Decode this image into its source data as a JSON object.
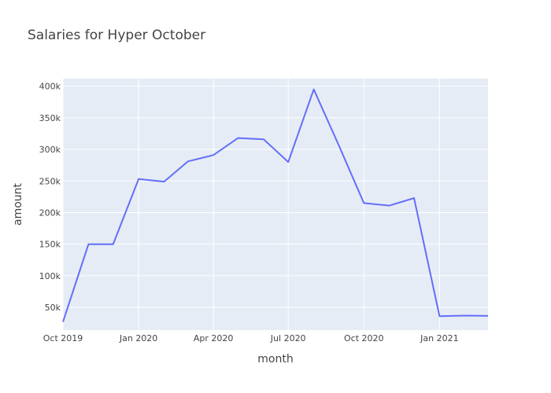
{
  "chart_data": {
    "type": "line",
    "title": "Salaries for Hyper October",
    "xlabel": "month",
    "ylabel": "amount",
    "x": [
      "2019-10-01",
      "2019-11-01",
      "2019-12-01",
      "2020-01-01",
      "2020-02-01",
      "2020-03-01",
      "2020-04-01",
      "2020-05-01",
      "2020-06-01",
      "2020-07-01",
      "2020-08-01",
      "2020-09-01",
      "2020-10-01",
      "2020-11-01",
      "2020-12-01",
      "2021-01-01",
      "2021-02-01",
      "2021-03-01"
    ],
    "series": [
      {
        "values": [
          27000,
          150000,
          150000,
          253000,
          249000,
          281000,
          291000,
          318000,
          316000,
          280000,
          395000,
          305000,
          215000,
          211000,
          223000,
          36000,
          37000,
          36500
        ],
        "color": "#636efa"
      }
    ],
    "x_ticks": [
      "Oct 2019",
      "Jan 2020",
      "Apr 2020",
      "Jul 2020",
      "Oct 2020",
      "Jan 2021"
    ],
    "y_ticks": [
      "50k",
      "100k",
      "150k",
      "200k",
      "250k",
      "300k",
      "350k",
      "400k"
    ],
    "y_tick_values": [
      50000,
      100000,
      150000,
      200000,
      250000,
      300000,
      350000,
      400000
    ],
    "ylim": [
      14000,
      412000
    ],
    "xlim": [
      "2019-10-01",
      "2021-03-01"
    ],
    "grid": true,
    "plot_bg": "#e5ecf6"
  }
}
